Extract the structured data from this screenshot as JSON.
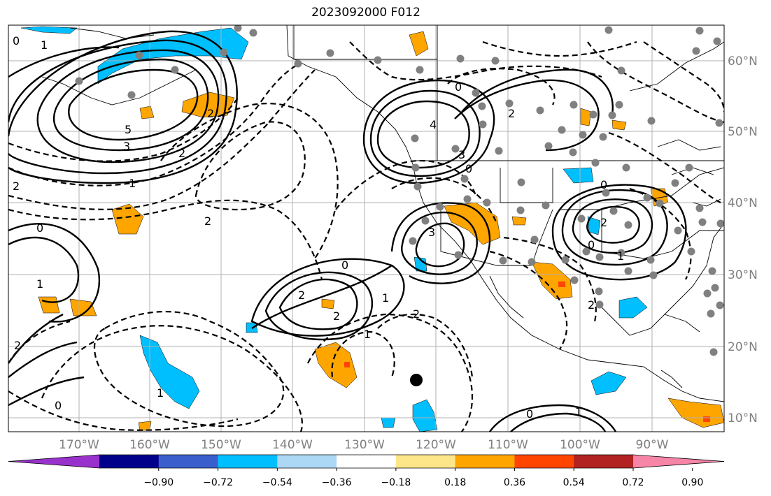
{
  "title": "2023092000 F012",
  "lon_ticks": [
    "170°W",
    "160°W",
    "150°W",
    "140°W",
    "130°W",
    "120°W",
    "110°W",
    "100°W",
    "90°W"
  ],
  "lat_ticks": [
    "60°N",
    "50°N",
    "40°N",
    "30°N",
    "20°N",
    "10°N"
  ],
  "colorbar": {
    "colors": [
      "#9932cc",
      "#00008b",
      "#3a5fcd",
      "#00bfff",
      "#add8f5",
      "#ffffff",
      "#fde68a",
      "#ffa500",
      "#ff4500",
      "#b22222",
      "#f785a8"
    ],
    "tick_labels": [
      "−0.90",
      "−0.72",
      "−0.54",
      "−0.36",
      "−0.18",
      "0.18",
      "0.36",
      "0.54",
      "0.72",
      "0.90"
    ]
  },
  "contour_labels": [
    "0",
    "1",
    "5",
    "3",
    "2",
    "1",
    "2",
    "0",
    "2",
    "4",
    "3",
    "0",
    "2",
    "0",
    "3",
    "2",
    "2",
    "0",
    "1",
    "2",
    "1",
    "2",
    "0",
    "1",
    "0",
    "2",
    "1",
    "0",
    "1",
    "2",
    "2",
    "0",
    "1"
  ],
  "marker_colors": {
    "station": "#808080",
    "center": "#000000",
    "contour": "#000000"
  }
}
